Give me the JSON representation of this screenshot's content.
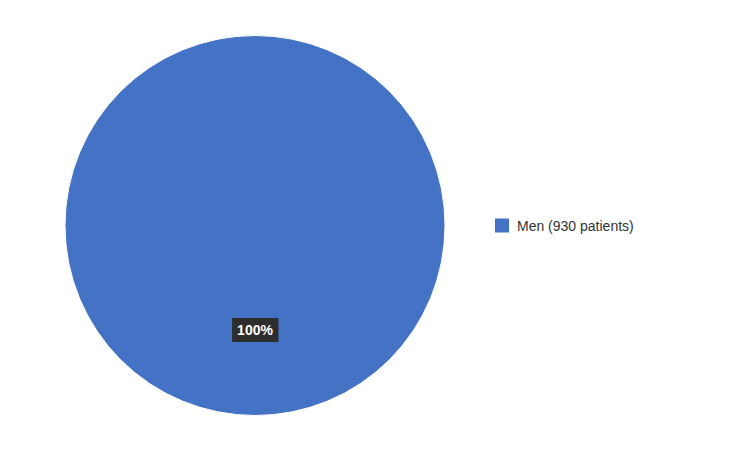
{
  "chart_data": {
    "type": "pie",
    "categories": [
      "Men (930 patients)"
    ],
    "values": [
      100
    ],
    "colors": [
      "#4472C4"
    ],
    "data_labels": true,
    "value_labels": [
      "100%"
    ],
    "legend": "right"
  }
}
